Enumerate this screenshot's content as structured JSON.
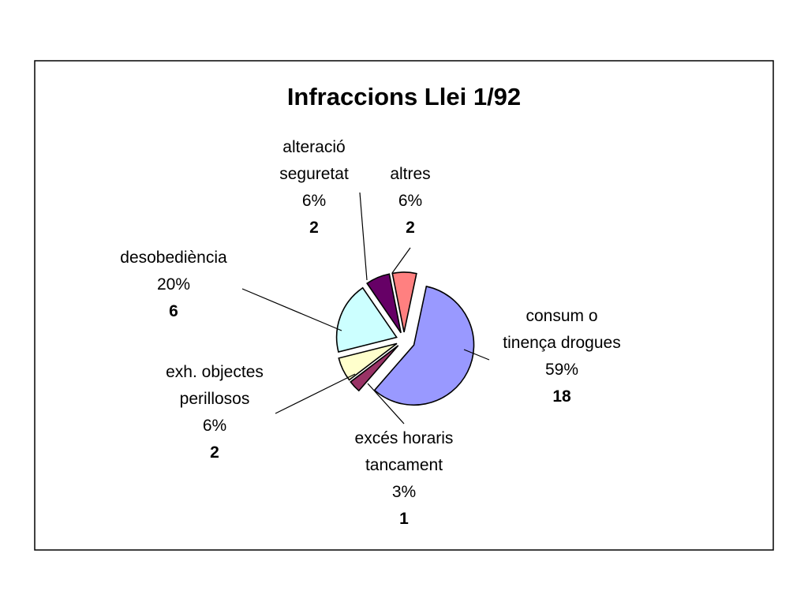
{
  "chart_data": {
    "type": "pie",
    "title": "Infraccions Llei 1/92",
    "legend": "none",
    "slices": [
      {
        "label": [
          "consum o",
          "tinença drogues"
        ],
        "percent": "59%",
        "count": "18",
        "value": 18,
        "color": "#9999ff"
      },
      {
        "label": [
          "excés horaris",
          "tancament"
        ],
        "percent": "3%",
        "count": "1",
        "value": 1,
        "color": "#993366"
      },
      {
        "label": [
          "exh. objectes",
          "perillosos"
        ],
        "percent": "6%",
        "count": "2",
        "value": 2,
        "color": "#ffffcc"
      },
      {
        "label": [
          "desobediència"
        ],
        "percent": "20%",
        "count": "6",
        "value": 6,
        "color": "#ccffff"
      },
      {
        "label": [
          "alteració",
          "seguretat"
        ],
        "percent": "6%",
        "count": "2",
        "value": 2,
        "color": "#660066"
      },
      {
        "label": [
          "altres"
        ],
        "percent": "6%",
        "count": "2",
        "value": 2,
        "color": "#ff8080"
      }
    ]
  }
}
